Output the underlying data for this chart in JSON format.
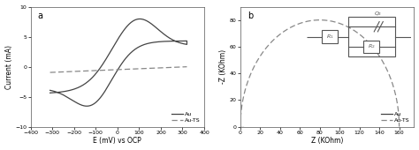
{
  "panel_a_label": "a",
  "panel_b_label": "b",
  "cv_xlim": [
    -400,
    400
  ],
  "cv_ylim": [
    -10,
    10
  ],
  "cv_xlabel": "E (mV) vs OCP",
  "cv_ylabel": "Current (mA)",
  "cv_xticks": [
    -400,
    -300,
    -200,
    -100,
    0,
    100,
    200,
    300,
    400
  ],
  "cv_yticks": [
    -10,
    -5,
    0,
    5,
    10
  ],
  "nyq_xlim": [
    0,
    180
  ],
  "nyq_ylim": [
    0,
    90
  ],
  "nyq_xlabel": "Z (KOhm)",
  "nyq_ylabel": "-Z (KOhm)",
  "nyq_xticks": [
    0,
    20,
    40,
    60,
    80,
    100,
    120,
    140,
    160
  ],
  "nyq_yticks": [
    0,
    20,
    40,
    60,
    80
  ],
  "legend_au": "Au",
  "legend_au_ts": "Au-TS",
  "line_color_solid": "#444444",
  "line_color_dashed": "#888888",
  "bg_color": "#ffffff"
}
